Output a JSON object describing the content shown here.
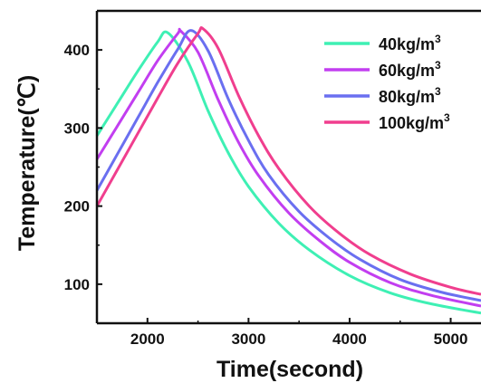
{
  "chart_data": {
    "type": "line",
    "xlabel": "Time(second)",
    "ylabel": "Temperature(℃)",
    "xlim": [
      1500,
      5300
    ],
    "ylim": [
      50,
      450
    ],
    "xticks": [
      2000,
      3000,
      4000,
      5000
    ],
    "yticks": [
      100,
      200,
      300,
      400
    ],
    "xtick_labels": [
      "2000",
      "3000",
      "4000",
      "5000"
    ],
    "ytick_labels": [
      "100",
      "200",
      "300",
      "400"
    ],
    "legend_position": "top-right",
    "series": [
      {
        "name": "40kg/m3",
        "label_base": "40kg/m",
        "label_sup": "3",
        "color": "#3ef0b4",
        "x": [
          1500,
          1700,
          1900,
          2100,
          2200,
          2400,
          2600,
          2800,
          3000,
          3300,
          3600,
          4000,
          4400,
          4800,
          5300
        ],
        "y": [
          290,
          331,
          372,
          410,
          422,
          385,
          322,
          268,
          225,
          178,
          144,
          111,
          89,
          75,
          63
        ]
      },
      {
        "name": "60kg/m3",
        "label_base": "60kg/m",
        "label_sup": "3",
        "color": "#c23ef0",
        "x": [
          1500,
          1700,
          1900,
          2100,
          2300,
          2330,
          2500,
          2700,
          2900,
          3100,
          3400,
          3700,
          4000,
          4400,
          4800,
          5300
        ],
        "y": [
          260,
          302,
          344,
          386,
          421,
          424,
          397,
          336,
          282,
          239,
          191,
          156,
          128,
          102,
          86,
          72
        ]
      },
      {
        "name": "80kg/m3",
        "label_base": "80kg/m",
        "label_sup": "3",
        "color": "#6a6ff0",
        "x": [
          1500,
          1700,
          1900,
          2100,
          2300,
          2430,
          2600,
          2800,
          3000,
          3200,
          3500,
          3800,
          4100,
          4500,
          4900,
          5300
        ],
        "y": [
          220,
          266,
          312,
          358,
          401,
          425,
          399,
          337,
          284,
          240,
          193,
          159,
          132,
          106,
          90,
          79
        ]
      },
      {
        "name": "100kg/m3",
        "label_base": "100kg/m",
        "label_sup": "3",
        "color": "#f03e8e",
        "x": [
          1500,
          1700,
          1900,
          2100,
          2300,
          2500,
          2550,
          2700,
          2900,
          3100,
          3300,
          3600,
          3900,
          4200,
          4600,
          5000,
          5300
        ],
        "y": [
          200,
          246,
          292,
          338,
          383,
          421,
          427,
          402,
          342,
          290,
          248,
          200,
          165,
          138,
          113,
          96,
          87
        ]
      }
    ]
  }
}
